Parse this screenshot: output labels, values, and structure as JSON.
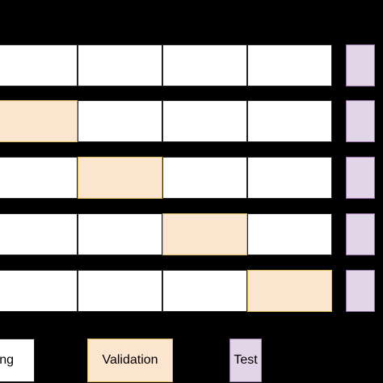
{
  "diagram": {
    "rows": [
      [
        "train",
        "train",
        "train",
        "train"
      ],
      [
        "val",
        "train",
        "train",
        "train"
      ],
      [
        "train",
        "val",
        "train",
        "train"
      ],
      [
        "train",
        "train",
        "val",
        "train"
      ],
      [
        "train",
        "train",
        "train",
        "val"
      ]
    ],
    "test_column": [
      "test",
      "test",
      "test",
      "test",
      "test"
    ]
  },
  "legend": {
    "training_label": "ng",
    "validation_label": "Validation",
    "test_label": "Test"
  },
  "colors": {
    "background": "#000000",
    "training_fill": "#ffffff",
    "validation_fill": "#fbe5cf",
    "validation_border": "#d6b656",
    "test_fill": "#e1d5e7",
    "test_border": "#9673a6"
  }
}
